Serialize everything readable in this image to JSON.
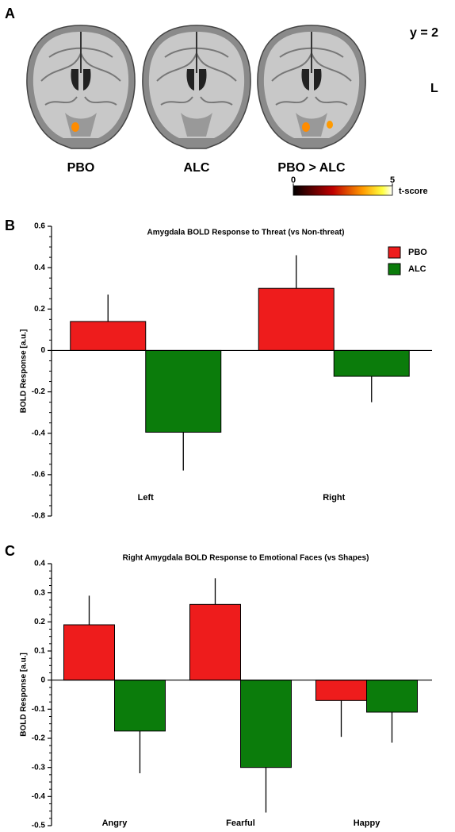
{
  "panel_a": {
    "panel_label": "A",
    "slice": "y = 2",
    "side": "L",
    "images": [
      {
        "label": "PBO"
      },
      {
        "label": "ALC"
      },
      {
        "label": "PBO > ALC"
      }
    ],
    "colorbar": {
      "clim": [
        0,
        5
      ],
      "ticks": [
        0,
        5
      ],
      "label": "t-score"
    }
  },
  "chart_data": [
    {
      "type": "bar",
      "panel_label": "B",
      "title": "Amygdala BOLD Response to Threat (vs Non-threat)",
      "y_label": "BOLD Response [a.u.]",
      "categories": [
        "Left",
        "Right"
      ],
      "series": [
        {
          "name": "PBO",
          "color": "#ee1c1c",
          "values": [
            0.14,
            0.3
          ],
          "errors": [
            0.13,
            0.16
          ]
        },
        {
          "name": "ALC",
          "color": "#0b7c0b",
          "values": [
            -0.395,
            -0.125
          ],
          "errors": [
            0.185,
            0.125
          ]
        }
      ],
      "ylim": [
        -0.8,
        0.6
      ],
      "yticks": [
        -0.8,
        -0.6,
        -0.4,
        -0.2,
        0,
        0.2,
        0.4,
        0.6
      ],
      "legend": "top-right"
    },
    {
      "type": "bar",
      "panel_label": "C",
      "title": "Right Amygdala BOLD Response to Emotional Faces (vs Shapes)",
      "y_label": "BOLD Response [a.u.]",
      "categories": [
        "Angry",
        "Fearful",
        "Happy"
      ],
      "series": [
        {
          "color": "#ee1c1c",
          "values": [
            0.19,
            0.26,
            -0.07
          ],
          "errors": [
            0.1,
            0.09,
            0.125
          ]
        },
        {
          "color": "#0b7c0b",
          "values": [
            -0.175,
            -0.3,
            -0.11
          ],
          "errors": [
            0.145,
            0.155,
            0.105
          ]
        }
      ],
      "ylim": [
        -0.5,
        0.4
      ],
      "yticks": [
        -0.5,
        -0.4,
        -0.3,
        -0.2,
        -0.1,
        0,
        0.1,
        0.2,
        0.3,
        0.4
      ]
    }
  ]
}
